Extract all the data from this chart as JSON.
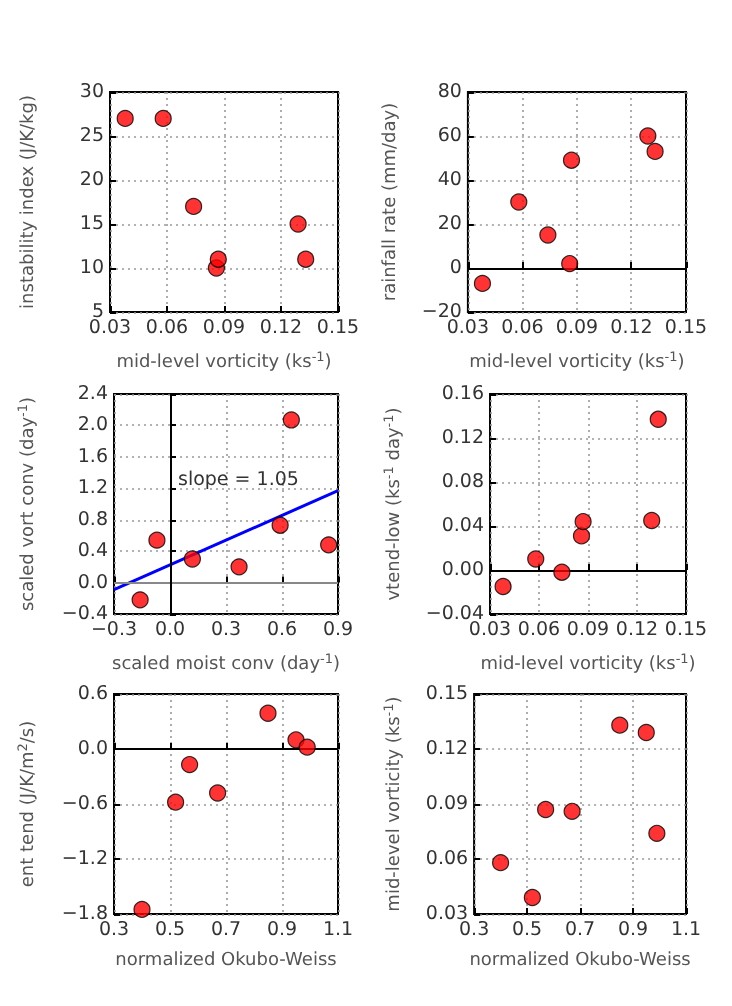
{
  "chart_data": [
    {
      "type": "scatter",
      "xlabel": "mid-level vorticity (ks$^{-1}$)",
      "ylabel": "instability index (J/K/kg)",
      "marker": "circle",
      "grid": true,
      "x": [
        0.038,
        0.058,
        0.074,
        0.086,
        0.087,
        0.129,
        0.133
      ],
      "values": [
        27,
        27,
        17,
        10,
        11,
        15,
        11
      ],
      "color": "#ff0000",
      "xlim": [
        0.03,
        0.15
      ],
      "xticks": [
        0.03,
        0.06,
        0.09,
        0.12,
        0.15
      ],
      "ylim": [
        5,
        30
      ],
      "yticks": [
        5,
        10,
        15,
        20,
        25,
        30
      ]
    },
    {
      "type": "scatter",
      "xlabel": "mid-level vorticity (ks$^{-1}$)",
      "ylabel": "rainfall rate (mm/day)",
      "marker": "circle",
      "grid": true,
      "x": [
        0.038,
        0.058,
        0.074,
        0.086,
        0.087,
        0.129,
        0.133
      ],
      "values": [
        -7,
        30,
        15,
        2,
        49,
        60,
        53
      ],
      "color": "#ff0000",
      "xlim": [
        0.03,
        0.15
      ],
      "xticks": [
        0.03,
        0.06,
        0.09,
        0.12,
        0.15
      ],
      "ylim": [
        -20,
        80
      ],
      "yticks": [
        {
          "value": -20,
          "label": "−20"
        },
        0,
        20,
        40,
        60,
        80
      ],
      "ref_lines": [
        {
          "axis": "y",
          "value": 0,
          "color": "#000000"
        }
      ]
    },
    {
      "type": "scatter",
      "xlabel": "scaled moist conv (day$^{-1}$)",
      "ylabel": "scaled vort conv (day$^{-1}$)",
      "marker": "circle",
      "grid": true,
      "series": [
        {
          "color": "#ff0000",
          "x": [
            -0.16,
            -0.07,
            0.12,
            0.37,
            0.59,
            0.65,
            0.85
          ],
          "values": [
            -0.22,
            0.54,
            0.3,
            0.2,
            0.73,
            2.07,
            0.48
          ]
        },
        {
          "type": "line",
          "color": "#0000ff",
          "marker": "none",
          "x": [
            -0.3,
            0.9
          ],
          "values": [
            -0.09,
            1.17
          ]
        }
      ],
      "annotations": [
        "slope = 1.05"
      ],
      "xlim": [
        -0.3,
        0.9
      ],
      "xticks": [
        {
          "value": -0.3,
          "label": "−0.3"
        },
        {
          "value": 0,
          "label": "0.0"
        },
        0.3,
        0.6,
        0.9
      ],
      "ylim": [
        -0.4,
        2.4
      ],
      "yticks": [
        {
          "value": -0.4,
          "label": "−0.4"
        },
        {
          "value": 0,
          "label": "0.0"
        },
        0.4,
        0.8,
        1.2,
        1.6,
        {
          "value": 2,
          "label": "2.0"
        },
        2.4
      ],
      "ref_lines": [
        {
          "axis": "y",
          "value": 0,
          "color": "#888888"
        },
        {
          "axis": "x",
          "value": 0,
          "color": "#000000"
        }
      ]
    },
    {
      "type": "scatter",
      "xlabel": "mid-level vorticity (ks$^{-1}$)",
      "ylabel": "vtend-low (ks$^{-1}$ day$^{-1}$)",
      "marker": "circle",
      "grid": true,
      "x": [
        0.038,
        0.058,
        0.074,
        0.086,
        0.087,
        0.129,
        0.133
      ],
      "values": [
        -0.015,
        0.01,
        -0.002,
        0.031,
        0.044,
        0.045,
        0.137
      ],
      "color": "#ff0000",
      "xlim": [
        0.03,
        0.15
      ],
      "xticks": [
        0.03,
        0.06,
        0.09,
        0.12,
        0.15
      ],
      "ylim": [
        -0.04,
        0.16
      ],
      "yticks": [
        {
          "value": -0.04,
          "label": "−0.04"
        },
        {
          "value": 0,
          "label": "0.00"
        },
        0.04,
        0.08,
        0.12,
        0.16
      ],
      "ref_lines": [
        {
          "axis": "y",
          "value": 0,
          "color": "#000000"
        }
      ]
    },
    {
      "type": "scatter",
      "xlabel": "normalized Okubo-Weiss",
      "ylabel": "ent tend (J/K/m$^{2}$/s)",
      "marker": "circle",
      "grid": true,
      "x": [
        0.4,
        0.52,
        0.57,
        0.67,
        0.85,
        0.95,
        0.99
      ],
      "values": [
        -1.75,
        -0.58,
        -0.17,
        -0.48,
        0.39,
        0.1,
        0.02
      ],
      "color": "#ff0000",
      "xlim": [
        0.3,
        1.1
      ],
      "xticks": [
        0.3,
        0.5,
        0.7,
        0.9,
        1.1
      ],
      "ylim": [
        -1.8,
        0.6
      ],
      "yticks": [
        {
          "value": -1.8,
          "label": "−1.8"
        },
        {
          "value": -1.2,
          "label": "−1.2"
        },
        {
          "value": -0.6,
          "label": "−0.6"
        },
        {
          "value": 0,
          "label": "0.0"
        },
        0.6
      ],
      "ref_lines": [
        {
          "axis": "y",
          "value": 0,
          "color": "#000000"
        }
      ]
    },
    {
      "type": "scatter",
      "xlabel": "normalized Okubo-Weiss",
      "ylabel": "mid-level vorticity (ks$^{-1}$)",
      "marker": "circle",
      "grid": true,
      "x": [
        0.4,
        0.52,
        0.57,
        0.67,
        0.85,
        0.95,
        0.99
      ],
      "values": [
        0.058,
        0.039,
        0.087,
        0.086,
        0.133,
        0.129,
        0.074
      ],
      "color": "#ff0000",
      "xlim": [
        0.3,
        1.1
      ],
      "xticks": [
        0.3,
        0.5,
        0.7,
        0.9,
        1.1
      ],
      "ylim": [
        0.03,
        0.15
      ],
      "yticks": [
        0.03,
        0.06,
        0.09,
        0.12,
        0.15
      ]
    }
  ]
}
